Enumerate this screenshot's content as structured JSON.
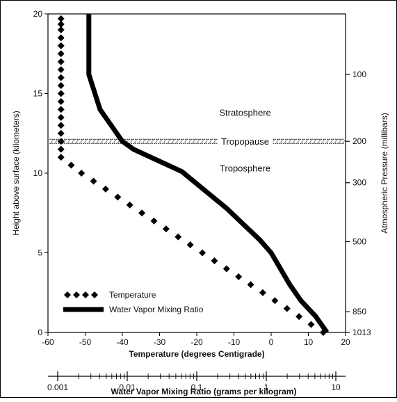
{
  "chart_data": {
    "type": "line",
    "y_left": {
      "label": "Height above surface (kilometers)",
      "ticks": [
        0,
        5,
        10,
        15,
        20
      ],
      "range": [
        0,
        20
      ]
    },
    "x_bottom": {
      "label": "Temperature (degrees Centigrade)",
      "ticks": [
        -60,
        -50,
        -40,
        -30,
        -20,
        -10,
        0,
        10,
        20
      ],
      "range": [
        -60,
        20
      ]
    },
    "x_mixing": {
      "label": "Water Vapor Mixing Ratio (grams per kilogram)",
      "scale": "log",
      "ticks": [
        "0.001",
        "0.01",
        "0.1",
        "1",
        "10"
      ],
      "tick_values": [
        0.001,
        0.01,
        0.1,
        1,
        10
      ]
    },
    "y_right": {
      "label": "Atmospheric Pressure (millibars)",
      "ticks": [
        {
          "label": "100",
          "height_km": 16.2
        },
        {
          "label": "200",
          "height_km": 12.0
        },
        {
          "label": "300",
          "height_km": 9.4
        },
        {
          "label": "500",
          "height_km": 5.7
        },
        {
          "label": "850",
          "height_km": 1.3
        },
        {
          "label": "1013",
          "height_km": 0.0
        }
      ]
    },
    "series": [
      {
        "name": "Temperature",
        "style": "diamonds",
        "color": "#000000",
        "points": [
          {
            "t": 14,
            "h": 0
          },
          {
            "t": 7.5,
            "h": 1
          },
          {
            "t": 1,
            "h": 2
          },
          {
            "t": -5.5,
            "h": 3
          },
          {
            "t": -12,
            "h": 4
          },
          {
            "t": -18.5,
            "h": 5
          },
          {
            "t": -25,
            "h": 6
          },
          {
            "t": -31.5,
            "h": 7
          },
          {
            "t": -38,
            "h": 8
          },
          {
            "t": -44.5,
            "h": 9
          },
          {
            "t": -51,
            "h": 10
          },
          {
            "t": -56.5,
            "h": 11
          },
          {
            "t": -56.5,
            "h": 12
          },
          {
            "t": -56.5,
            "h": 13
          },
          {
            "t": -56.5,
            "h": 14
          },
          {
            "t": -56.5,
            "h": 15
          },
          {
            "t": -56.5,
            "h": 16
          },
          {
            "t": -56.5,
            "h": 17
          },
          {
            "t": -56.5,
            "h": 18
          },
          {
            "t": -56.5,
            "h": 19
          },
          {
            "t": -56.5,
            "h": 19.7
          }
        ]
      },
      {
        "name": "Water Vapor Mixing Ratio",
        "style": "thick-line",
        "color": "#000000",
        "points": [
          {
            "t": 15,
            "h": 0
          },
          {
            "t": 12,
            "h": 1
          },
          {
            "t": 8,
            "h": 2
          },
          {
            "t": 5,
            "h": 3
          },
          {
            "t": 0,
            "h": 5
          },
          {
            "t": -3,
            "h": 5.8
          },
          {
            "t": -12,
            "h": 7.8
          },
          {
            "t": -24,
            "h": 10.1
          },
          {
            "t": -37,
            "h": 11.5
          },
          {
            "t": -40,
            "h": 12
          },
          {
            "t": -46,
            "h": 14
          },
          {
            "t": -49,
            "h": 16.2
          },
          {
            "t": -49,
            "h": 20
          }
        ]
      }
    ],
    "legend": [
      {
        "name": "Temperature",
        "style": "diamonds"
      },
      {
        "name": "Water Vapor Mixing Ratio",
        "style": "thick-line"
      }
    ],
    "annotations": {
      "stratosphere": "Stratosphere",
      "tropopause": "Tropopause",
      "troposphere": "Troposphere"
    },
    "tropopause_height_km": 12.0
  }
}
